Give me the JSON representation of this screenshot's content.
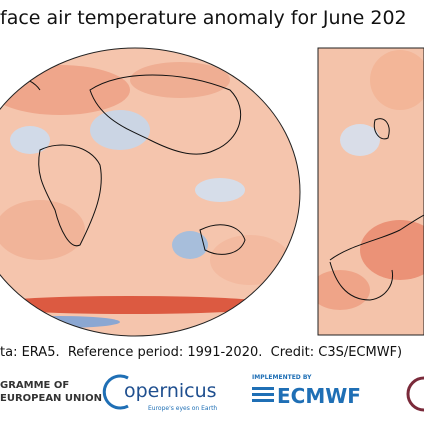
{
  "header": {
    "title": "face air temperature anomaly for June 202"
  },
  "credit": "ta: ERA5.  Reference period: 1991-2020.  Credit: C3S/ECMWF)",
  "logos": {
    "eu": [
      "GRAMME OF",
      "EUROPEAN UNION"
    ],
    "copernicus": {
      "name": "opernicus",
      "tagline": "Europe's eyes on Earth"
    },
    "ecmwf": {
      "caption": "IMPLEMENTED BY",
      "name": "ECMWF"
    }
  }
}
